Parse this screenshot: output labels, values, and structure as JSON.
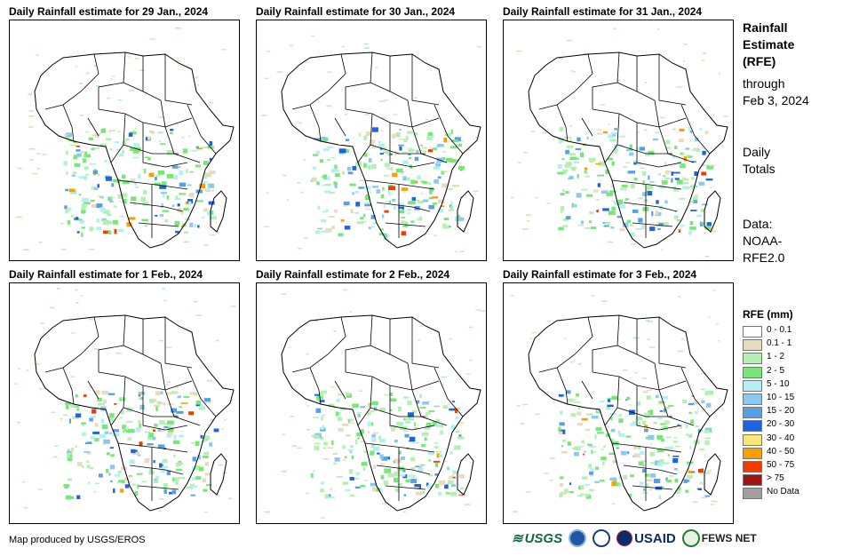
{
  "panels": [
    {
      "title": "Daily Rainfall estimate for 29 Jan., 2024"
    },
    {
      "title": "Daily Rainfall estimate for 30 Jan., 2024"
    },
    {
      "title": "Daily Rainfall estimate for 31 Jan., 2024"
    },
    {
      "title": "Daily Rainfall estimate for 1 Feb., 2024"
    },
    {
      "title": "Daily Rainfall estimate for 2 Feb., 2024"
    },
    {
      "title": "Daily Rainfall estimate for 3 Feb., 2024"
    }
  ],
  "info": {
    "title_line1": "Rainfall",
    "title_line2": "Estimate",
    "title_line3": "(RFE)",
    "through": "through",
    "date": "Feb 3, 2024",
    "totals_line1": "Daily",
    "totals_line2": "Totals",
    "data_line1": "Data:",
    "data_line2": "NOAA-",
    "data_line3": "RFE2.0"
  },
  "legend": {
    "title": "RFE (mm)",
    "items": [
      {
        "label": "0 - 0.1",
        "color": "#ffffff"
      },
      {
        "label": "0.1 - 1",
        "color": "#e8dcc0"
      },
      {
        "label": "1 - 2",
        "color": "#b4f0b4"
      },
      {
        "label": "2 - 5",
        "color": "#78e678"
      },
      {
        "label": "5 - 10",
        "color": "#b4f0f0"
      },
      {
        "label": "10 - 15",
        "color": "#8cc8f0"
      },
      {
        "label": "15 - 20",
        "color": "#5aa0e6"
      },
      {
        "label": "20 - 30",
        "color": "#1e64dc"
      },
      {
        "label": "30 - 40",
        "color": "#f8e678"
      },
      {
        "label": "40 - 50",
        "color": "#f8a000"
      },
      {
        "label": "50 - 75",
        "color": "#f03c00"
      },
      {
        "label": "> 75",
        "color": "#a01414"
      },
      {
        "label": "No Data",
        "color": "#a0a0a0"
      }
    ]
  },
  "footer": {
    "credit": "Map produced by USGS/EROS",
    "logo_usgs": "USGS",
    "logo_usaid": "USAID",
    "logo_fews": "FEWS NET"
  }
}
